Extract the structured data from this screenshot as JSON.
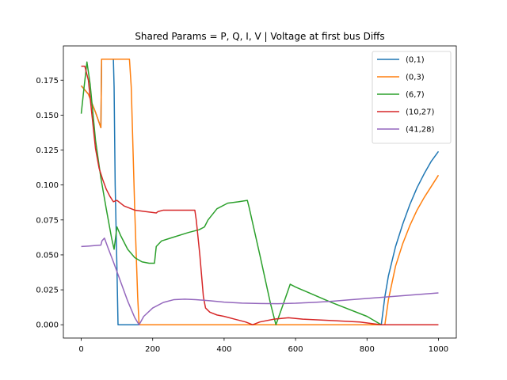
{
  "chart_data": {
    "type": "line",
    "title": "Shared Params = P, Q, I, V | Voltage at first bus Diffs",
    "xlabel": "",
    "ylabel": "",
    "xlim": [
      -50,
      1050
    ],
    "ylim": [
      -0.0095,
      0.1995
    ],
    "xticks": [
      0,
      200,
      400,
      600,
      800,
      1000
    ],
    "xtick_labels": [
      "0",
      "200",
      "400",
      "600",
      "800",
      "1000"
    ],
    "yticks": [
      0.0,
      0.025,
      0.05,
      0.075,
      0.1,
      0.125,
      0.15,
      0.175
    ],
    "ytick_labels": [
      "0.000",
      "0.025",
      "0.050",
      "0.075",
      "0.100",
      "0.125",
      "0.150",
      "0.175"
    ],
    "grid": false,
    "legend_position": "top-right",
    "series": [
      {
        "name": "(0,1)",
        "color": "#1f77b4",
        "points": [
          [
            0,
            0.171
          ],
          [
            20,
            0.165
          ],
          [
            40,
            0.152
          ],
          [
            55,
            0.141
          ],
          [
            57,
            0.19
          ],
          [
            90,
            0.19
          ],
          [
            92,
            0.17
          ],
          [
            95,
            0.1
          ],
          [
            100,
            0.04
          ],
          [
            103,
            0
          ],
          [
            200,
            0
          ],
          [
            400,
            0
          ],
          [
            600,
            0
          ],
          [
            800,
            0
          ],
          [
            840,
            0
          ],
          [
            850,
            0.02
          ],
          [
            860,
            0.035
          ],
          [
            880,
            0.056
          ],
          [
            900,
            0.072
          ],
          [
            920,
            0.086
          ],
          [
            940,
            0.098
          ],
          [
            960,
            0.108
          ],
          [
            980,
            0.117
          ],
          [
            1000,
            0.124
          ]
        ]
      },
      {
        "name": "(0,3)",
        "color": "#ff7f0e",
        "points": [
          [
            0,
            0.171
          ],
          [
            20,
            0.165
          ],
          [
            40,
            0.152
          ],
          [
            55,
            0.141
          ],
          [
            57,
            0.19
          ],
          [
            90,
            0.19
          ],
          [
            135,
            0.19
          ],
          [
            140,
            0.17
          ],
          [
            150,
            0.08
          ],
          [
            158,
            0.02
          ],
          [
            162,
            0
          ],
          [
            200,
            0
          ],
          [
            400,
            0
          ],
          [
            600,
            0
          ],
          [
            800,
            0
          ],
          [
            850,
            0
          ],
          [
            860,
            0.018
          ],
          [
            880,
            0.042
          ],
          [
            900,
            0.058
          ],
          [
            920,
            0.071
          ],
          [
            940,
            0.082
          ],
          [
            960,
            0.091
          ],
          [
            980,
            0.099
          ],
          [
            1000,
            0.107
          ]
        ]
      },
      {
        "name": "(6,7)",
        "color": "#2ca02c",
        "points": [
          [
            0,
            0.151
          ],
          [
            8,
            0.17
          ],
          [
            16,
            0.188
          ],
          [
            25,
            0.172
          ],
          [
            40,
            0.132
          ],
          [
            55,
            0.105
          ],
          [
            70,
            0.083
          ],
          [
            85,
            0.062
          ],
          [
            92,
            0.054
          ],
          [
            100,
            0.07
          ],
          [
            110,
            0.064
          ],
          [
            130,
            0.054
          ],
          [
            150,
            0.048
          ],
          [
            170,
            0.045
          ],
          [
            190,
            0.044
          ],
          [
            205,
            0.044
          ],
          [
            210,
            0.056
          ],
          [
            225,
            0.06
          ],
          [
            250,
            0.062
          ],
          [
            300,
            0.066
          ],
          [
            330,
            0.068
          ],
          [
            345,
            0.07
          ],
          [
            355,
            0.075
          ],
          [
            380,
            0.083
          ],
          [
            410,
            0.087
          ],
          [
            440,
            0.088
          ],
          [
            465,
            0.089
          ],
          [
            470,
            0.084
          ],
          [
            500,
            0.05
          ],
          [
            530,
            0.015
          ],
          [
            545,
            0.0
          ],
          [
            570,
            0.018
          ],
          [
            585,
            0.029
          ],
          [
            600,
            0.027
          ],
          [
            700,
            0.016
          ],
          [
            800,
            0.006
          ],
          [
            840,
            0.0
          ]
        ]
      },
      {
        "name": "(10,27)",
        "color": "#d62728",
        "points": [
          [
            0,
            0.185
          ],
          [
            10,
            0.185
          ],
          [
            20,
            0.175
          ],
          [
            30,
            0.15
          ],
          [
            40,
            0.126
          ],
          [
            50,
            0.112
          ],
          [
            60,
            0.104
          ],
          [
            70,
            0.097
          ],
          [
            80,
            0.092
          ],
          [
            90,
            0.088
          ],
          [
            100,
            0.089
          ],
          [
            120,
            0.085
          ],
          [
            150,
            0.082
          ],
          [
            180,
            0.081
          ],
          [
            210,
            0.08
          ],
          [
            215,
            0.081
          ],
          [
            230,
            0.082
          ],
          [
            270,
            0.082
          ],
          [
            300,
            0.082
          ],
          [
            318,
            0.082
          ],
          [
            322,
            0.075
          ],
          [
            332,
            0.05
          ],
          [
            342,
            0.02
          ],
          [
            348,
            0.012
          ],
          [
            360,
            0.009
          ],
          [
            380,
            0.007
          ],
          [
            400,
            0.006
          ],
          [
            430,
            0.004
          ],
          [
            460,
            0.002
          ],
          [
            480,
            0.0
          ],
          [
            500,
            0.002
          ],
          [
            540,
            0.004
          ],
          [
            580,
            0.005
          ],
          [
            620,
            0.004
          ],
          [
            700,
            0.003
          ],
          [
            780,
            0.002
          ],
          [
            840,
            0.0
          ],
          [
            850,
            0.0
          ],
          [
            1000,
            0.0
          ]
        ]
      },
      {
        "name": "(41,28)",
        "color": "#9467bd",
        "points": [
          [
            0,
            0.056
          ],
          [
            20,
            0.0563
          ],
          [
            40,
            0.0567
          ],
          [
            55,
            0.057
          ],
          [
            58,
            0.06
          ],
          [
            65,
            0.062
          ],
          [
            75,
            0.055
          ],
          [
            90,
            0.045
          ],
          [
            110,
            0.031
          ],
          [
            130,
            0.017
          ],
          [
            150,
            0.005
          ],
          [
            162,
            0.0
          ],
          [
            175,
            0.006
          ],
          [
            200,
            0.012
          ],
          [
            230,
            0.016
          ],
          [
            260,
            0.018
          ],
          [
            290,
            0.0183
          ],
          [
            320,
            0.018
          ],
          [
            360,
            0.0172
          ],
          [
            400,
            0.0162
          ],
          [
            450,
            0.0155
          ],
          [
            500,
            0.0152
          ],
          [
            550,
            0.0151
          ],
          [
            600,
            0.0154
          ],
          [
            650,
            0.016
          ],
          [
            700,
            0.0168
          ],
          [
            750,
            0.0178
          ],
          [
            800,
            0.0188
          ],
          [
            850,
            0.0198
          ],
          [
            900,
            0.0208
          ],
          [
            950,
            0.0218
          ],
          [
            1000,
            0.0228
          ]
        ]
      }
    ]
  }
}
